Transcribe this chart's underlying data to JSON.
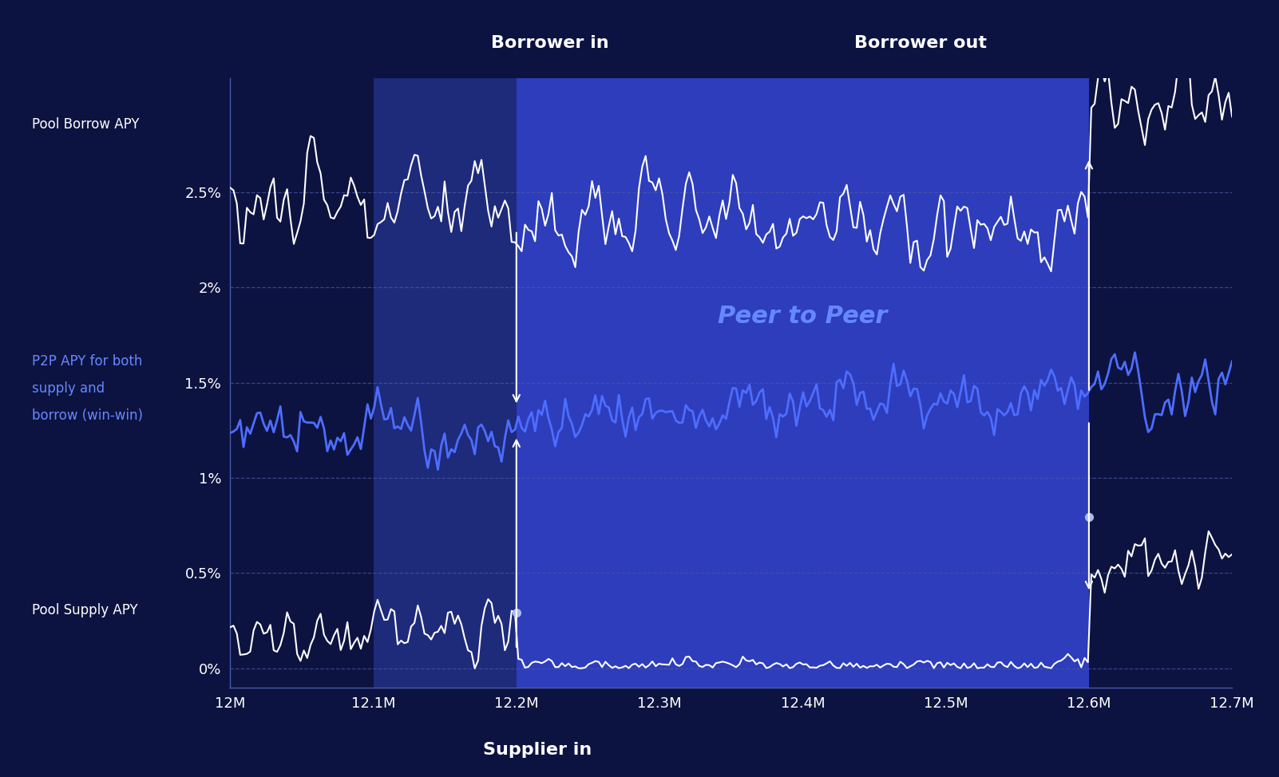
{
  "bg_color": "#0d1340",
  "plot_bg_color": "#0d1340",
  "region1_color": "#1a2472",
  "region2_color": "#2a3aaa",
  "title_borrower_in": "Borrower in",
  "title_borrower_out": "Borrower out",
  "title_supplier_in": "Supplier in",
  "label_pool_borrow": "Pool Borrow APY",
  "label_p2p_line1": "P2P APY for both",
  "label_p2p_line2": "supply and",
  "label_p2p_line3": "borrow (win-win)",
  "label_pool_supply": "Pool Supply APY",
  "label_peer_to_peer": "Peer to Peer",
  "x_labels": [
    "12M",
    "12.1M",
    "12.2M",
    "12.3M",
    "12.4M",
    "12.5M",
    "12.6M",
    "12.7M"
  ],
  "y_tick_labels": [
    "0%",
    "0.5%",
    "1%",
    "1.5%",
    "2%",
    "2.5%"
  ],
  "white_line_color": "#ffffff",
  "blue_line_color": "#4d6dff",
  "text_color": "#ffffff",
  "p2p_text_color": "#6688ff",
  "grid_color": "#4a5aaa",
  "axis_spine_color": "#4a5aaa"
}
